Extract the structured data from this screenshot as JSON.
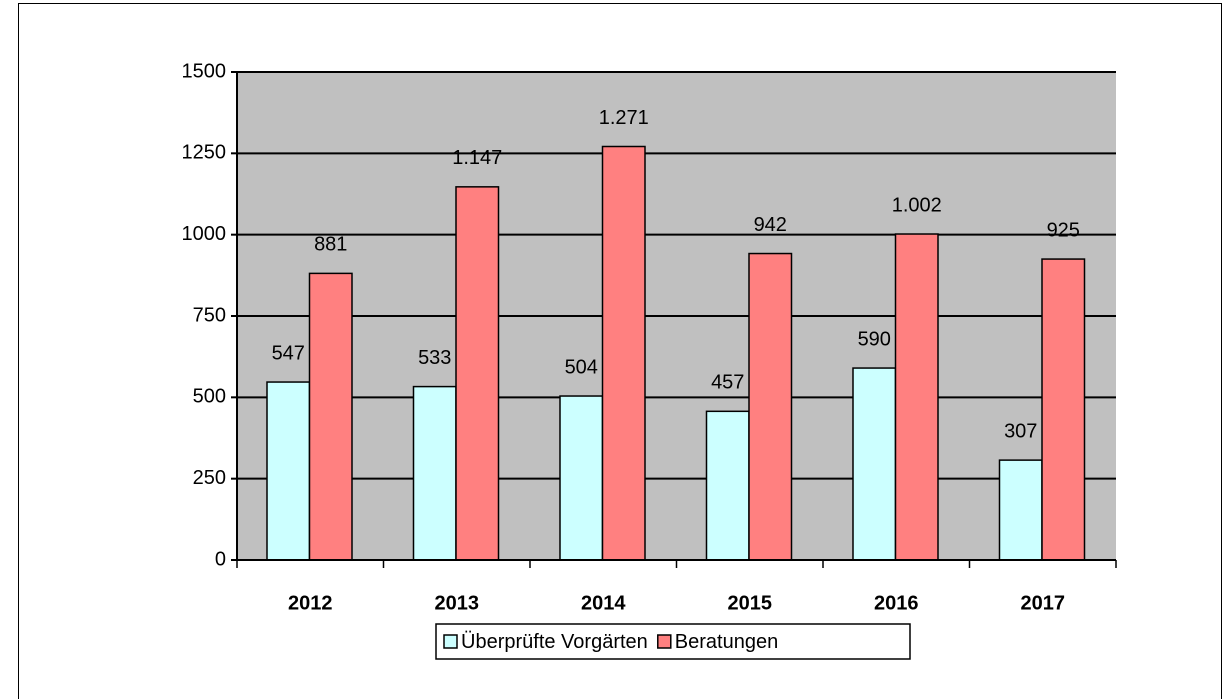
{
  "chart_data": {
    "type": "bar",
    "categories": [
      "2012",
      "2013",
      "2014",
      "2015",
      "2016",
      "2017"
    ],
    "series": [
      {
        "name": "Überprüfte Vorgärten",
        "color": "#ccffff",
        "values": [
          547,
          533,
          504,
          457,
          590,
          307
        ]
      },
      {
        "name": "Beratungen",
        "color": "#ff8080",
        "values": [
          881,
          1147,
          1271,
          942,
          1002,
          925
        ],
        "value_labels": [
          "881",
          "1.147",
          "1.271",
          "942",
          "1.002",
          "925"
        ]
      }
    ],
    "ylim": [
      0,
      1500
    ],
    "yticks": [
      0,
      250,
      500,
      750,
      1000,
      1250,
      1500
    ],
    "grid": true,
    "plot_background": "#c0c0c0",
    "legend": "bottom"
  }
}
